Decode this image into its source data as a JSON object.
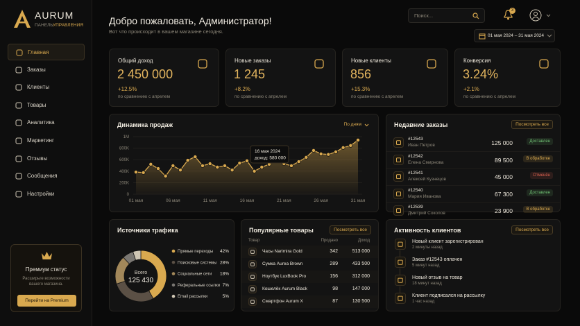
{
  "sidebar": {
    "brand": "AURUM",
    "subtitle_1": "ПАНЕЛЬ",
    "subtitle_2": "УПРАВЛЕНИЯ",
    "menu": [
      "Главная",
      "Заказы",
      "Клиенты",
      "Товары",
      "Аналитика",
      "Маркетинг",
      "Отзывы",
      "Сообщения",
      "Настройки"
    ],
    "premium": {
      "title": "Премиум статус",
      "text": "Расширьте возможности вашего магазина.",
      "button": "Перейти на Premium"
    }
  },
  "header": {
    "title": "Добро пожаловать, Администратор!",
    "subtitle": "Вот что происходит в вашем магазине сегодня.",
    "search_placeholder": "Поиск...",
    "notifications": "3",
    "date_range": "01 мая 2024 – 31 мая 2024"
  },
  "kpis": [
    {
      "label": "Общий доход",
      "value": "2 450 000",
      "change": "+12.5%",
      "note": "по сравнению с апрелем"
    },
    {
      "label": "Новые заказы",
      "value": "1 245",
      "change": "+8.2%",
      "note": "по сравнению с апрелем"
    },
    {
      "label": "Новые клиенты",
      "value": "856",
      "change": "+15.3%",
      "note": "по сравнению с апрелем"
    },
    {
      "label": "Конверсия",
      "value": "3.24%",
      "change": "+2.1%",
      "note": "по сравнению с апрелем"
    }
  ],
  "chart_data": [
    {
      "type": "line",
      "title": "Динамика продаж",
      "period": "По дням",
      "x": [
        "01 мая",
        null,
        null,
        null,
        null,
        "06 мая",
        null,
        null,
        null,
        null,
        "11 мая",
        null,
        null,
        null,
        null,
        "16 мая",
        null,
        null,
        null,
        null,
        "21 мая",
        null,
        null,
        null,
        null,
        "26 мая",
        null,
        null,
        null,
        null,
        "31 мая"
      ],
      "values": [
        385000,
        375000,
        520000,
        445000,
        315000,
        495000,
        420000,
        590000,
        650000,
        495000,
        530000,
        470000,
        495000,
        420000,
        540000,
        580000,
        400000,
        470000,
        520000,
        600000,
        530000,
        495000,
        565000,
        640000,
        760000,
        700000,
        690000,
        735000,
        810000,
        845000,
        940000
      ],
      "color": "#d9a94f",
      "ylim": [
        0,
        1000000
      ],
      "yticks": [
        0,
        {
          "value": 200000,
          "label": "200K"
        },
        {
          "value": 400000,
          "label": "400K"
        },
        {
          "value": 600000,
          "label": "600K"
        },
        {
          "value": 800000,
          "label": "800K"
        },
        {
          "value": 1000000,
          "label": "1M"
        }
      ],
      "grid": true,
      "annotation": {
        "title": "16 мая 2024",
        "text": "доход: 580 000"
      }
    },
    {
      "type": "pie",
      "title": "Источники трафика",
      "categories": [
        "Прямые переходы",
        "Поисковые системы",
        "Социальные сети",
        "Реферальные ссылки",
        "Email рассылки"
      ],
      "values": [
        42,
        28,
        18,
        7,
        5
      ],
      "value_labels": [
        "42%",
        "28%",
        "18%",
        "7%",
        "5%"
      ],
      "colors": [
        "#d9a94f",
        "#5b5045",
        "#a3885a",
        "#7a7772",
        "#cfc6b4"
      ],
      "center_title": "Всего",
      "center_value": "125 430"
    }
  ],
  "recent_orders": {
    "title": "Недавние заказы",
    "link": "Посмотреть все",
    "rows": [
      {
        "id": "#12543",
        "customer": "Иван Петров",
        "amount": "125 000",
        "status": "Доставлен",
        "status_color": "#6fbf73"
      },
      {
        "id": "#12542",
        "customer": "Елена Смирнова",
        "amount": "89 500",
        "status": "В обработке",
        "status_color": "#d9a94f"
      },
      {
        "id": "#12541",
        "customer": "Алексей Кузнецов",
        "amount": "45 000",
        "status": "Отменён",
        "status_color": "#d9604f"
      },
      {
        "id": "#12540",
        "customer": "Мария Иванова",
        "amount": "67 300",
        "status": "Доставлен",
        "status_color": "#6fbf73"
      },
      {
        "id": "#12539",
        "customer": "Дмитрий Соколов",
        "amount": "23 900",
        "status": "В обработке",
        "status_color": "#d9a94f"
      }
    ]
  },
  "popular_products": {
    "title": "Популярные товары",
    "link": "Посмотреть все",
    "columns": [
      "Товар",
      "Продано",
      "Доход"
    ],
    "rows": [
      [
        "Часы Narimira Gold",
        "342",
        "513 000"
      ],
      [
        "Сумка Aurea Brown",
        "289",
        "433 500"
      ],
      [
        "Ноутбук LuxBook Pro",
        "156",
        "312 000"
      ],
      [
        "Кошелёк Aurum Black",
        "98",
        "147 000"
      ],
      [
        "Смартфон Aurum X",
        "87",
        "130 500"
      ]
    ]
  },
  "customer_activity": {
    "title": "Активность клиентов",
    "link": "Посмотреть все",
    "items": [
      {
        "text": "Новый клиент зарегистрирован",
        "time": "2 минуты назад"
      },
      {
        "text": "Заказ #12543 оплачен",
        "time": "5 минут назад"
      },
      {
        "text": "Новый отзыв на товар",
        "time": "18 минут назад"
      },
      {
        "text": "Клиент подписался на рассылку",
        "time": "1 час назад"
      }
    ]
  }
}
